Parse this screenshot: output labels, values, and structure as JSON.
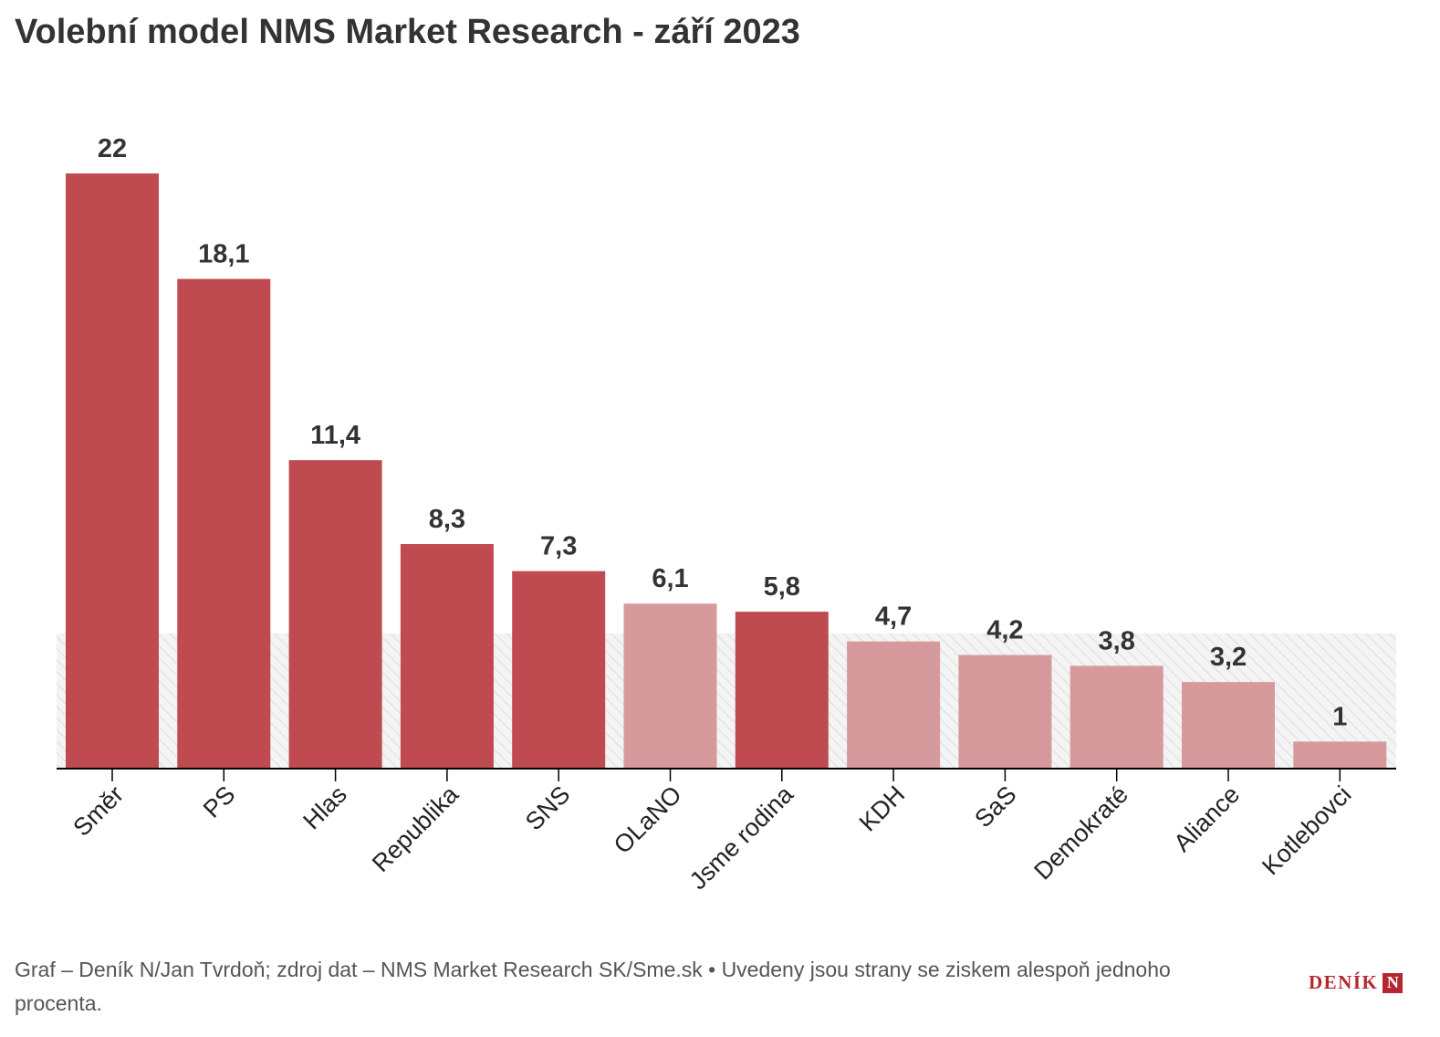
{
  "title": "Volební model NMS Market Research - září 2023",
  "footer": "Graf – Deník N/Jan Tvrdoň; zdroj dat – NMS Market Research SK/Sme.sk • Uvedeny jsou strany se ziskem alespoň jednoho procenta.",
  "logo": {
    "text": "DENÍK",
    "mark": "N"
  },
  "colors": {
    "above_threshold": "#bf4a50",
    "below_threshold": "#d59597",
    "threshold_band": "#f0f0f0",
    "axis": "#000000"
  },
  "chart_data": {
    "type": "bar",
    "title": "Volební model NMS Market Research - září 2023",
    "xlabel": "",
    "ylabel": "",
    "categories": [
      "Směr",
      "PS",
      "Hlas",
      "Republika",
      "SNS",
      "OLaNO",
      "Jsme rodina",
      "KDH",
      "SaS",
      "Demokraté",
      "Aliance",
      "Kotlebovci"
    ],
    "values": [
      22,
      18.1,
      11.4,
      8.3,
      7.3,
      6.1,
      5.8,
      4.7,
      4.2,
      3.8,
      3.2,
      1
    ],
    "value_labels": [
      "22",
      "18,1",
      "11,4",
      "8,3",
      "7,3",
      "6,1",
      "5,8",
      "4,7",
      "4,2",
      "3,8",
      "3,2",
      "1"
    ],
    "above_threshold": [
      true,
      true,
      true,
      true,
      true,
      false,
      true,
      false,
      false,
      false,
      false,
      false
    ],
    "threshold": 5,
    "ylim": [
      0,
      22
    ],
    "grid": false,
    "legend": "none"
  }
}
